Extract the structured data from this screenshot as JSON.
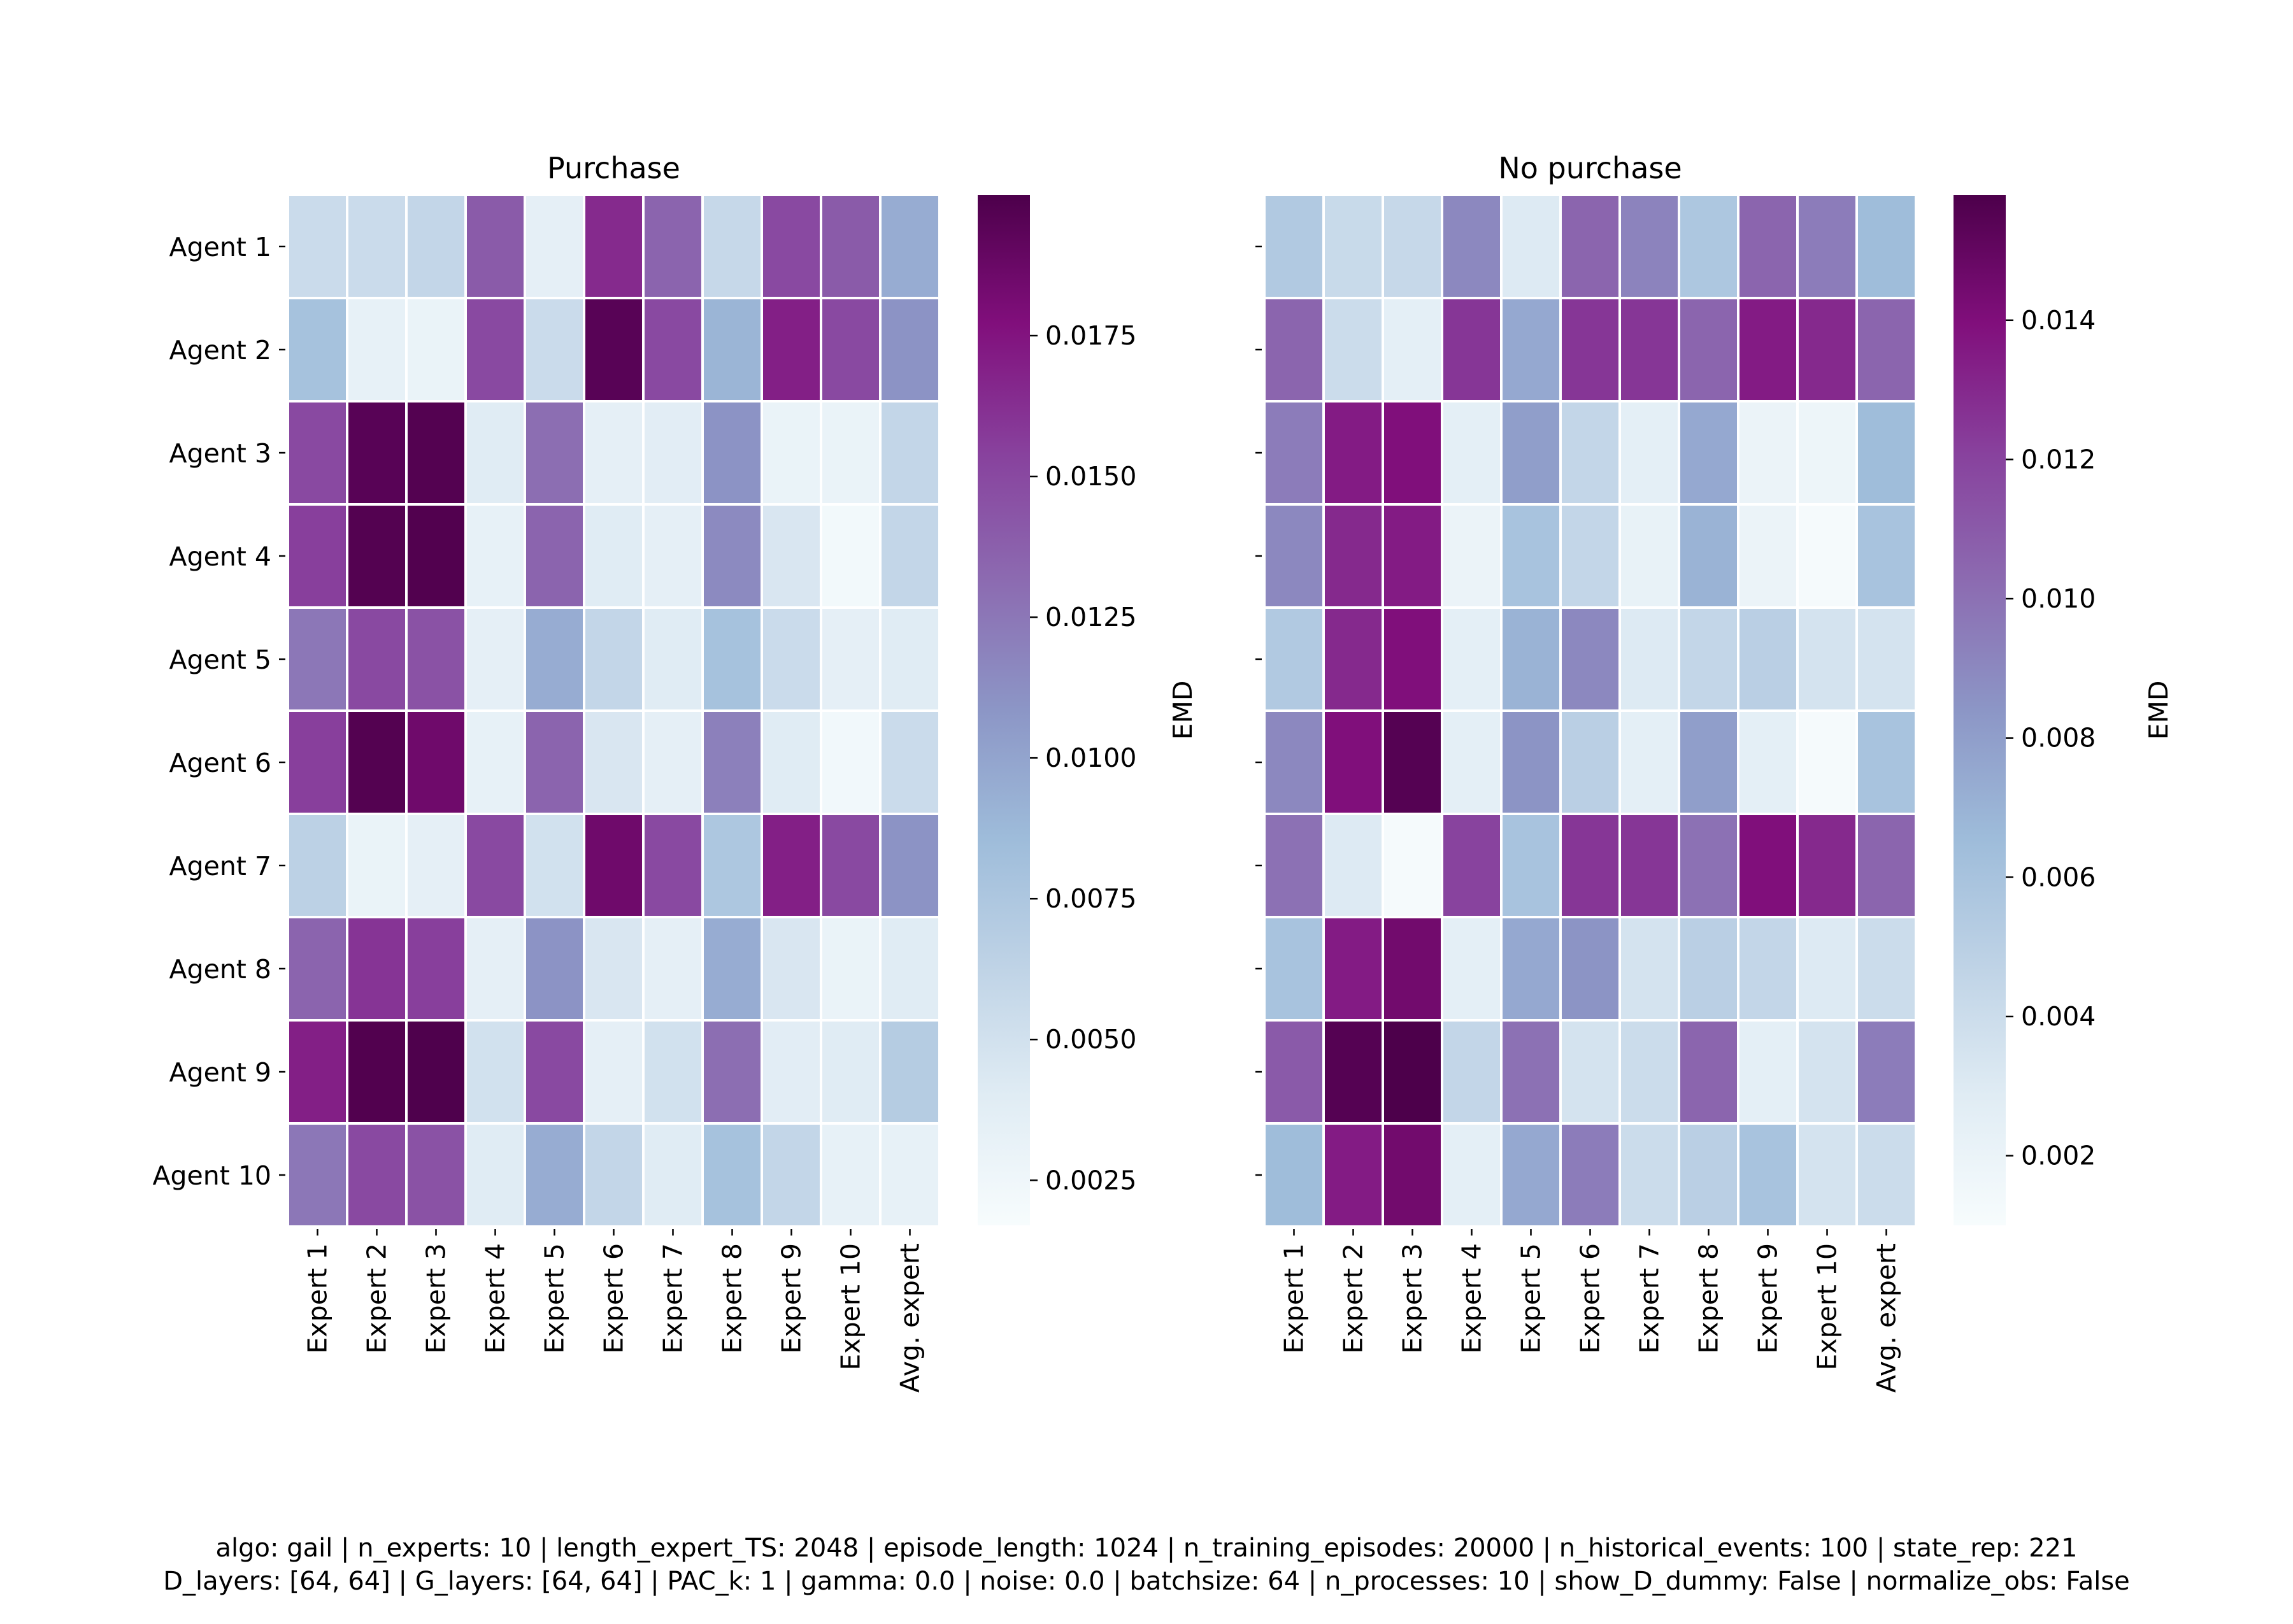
{
  "chart_data": [
    {
      "type": "heatmap",
      "title": "Purchase",
      "row_labels": [
        "Agent 1",
        "Agent 2",
        "Agent 3",
        "Agent 4",
        "Agent 5",
        "Agent 6",
        "Agent 7",
        "Agent 8",
        "Agent 9",
        "Agent 10"
      ],
      "col_labels": [
        "Expert 1",
        "Expert 2",
        "Expert 3",
        "Expert 4",
        "Expert 5",
        "Expert 6",
        "Expert 7",
        "Expert 8",
        "Expert 9",
        "Expert 10",
        "Avg. expert"
      ],
      "values": [
        [
          0.0055,
          0.0055,
          0.006,
          0.014,
          0.0035,
          0.0165,
          0.0135,
          0.0058,
          0.015,
          0.014,
          0.0095
        ],
        [
          0.008,
          0.0033,
          0.003,
          0.015,
          0.0055,
          0.0195,
          0.015,
          0.009,
          0.017,
          0.015,
          0.011
        ],
        [
          0.015,
          0.0195,
          0.0197,
          0.004,
          0.013,
          0.0035,
          0.0038,
          0.011,
          0.003,
          0.003,
          0.006
        ],
        [
          0.0155,
          0.0197,
          0.0198,
          0.0033,
          0.0135,
          0.004,
          0.0035,
          0.0115,
          0.0045,
          0.0022,
          0.006
        ],
        [
          0.0125,
          0.015,
          0.0145,
          0.0035,
          0.0095,
          0.006,
          0.004,
          0.008,
          0.0055,
          0.0035,
          0.004
        ],
        [
          0.0155,
          0.0197,
          0.0185,
          0.0033,
          0.0135,
          0.0045,
          0.0035,
          0.012,
          0.004,
          0.0023,
          0.0055
        ],
        [
          0.0065,
          0.003,
          0.0035,
          0.015,
          0.005,
          0.0185,
          0.015,
          0.0075,
          0.017,
          0.015,
          0.011
        ],
        [
          0.0135,
          0.016,
          0.0155,
          0.0035,
          0.011,
          0.0045,
          0.0035,
          0.0095,
          0.0045,
          0.003,
          0.004
        ],
        [
          0.017,
          0.0198,
          0.0199,
          0.005,
          0.015,
          0.0035,
          0.005,
          0.013,
          0.0038,
          0.004,
          0.007
        ],
        [
          0.0125,
          0.015,
          0.0145,
          0.004,
          0.0095,
          0.006,
          0.004,
          0.008,
          0.006,
          0.0033,
          0.0033
        ]
      ],
      "vmin": 0.0017,
      "vmax": 0.02,
      "colorbar": {
        "label": "EMD",
        "ticks": [
          0.0025,
          0.005,
          0.0075,
          0.01,
          0.0125,
          0.015,
          0.0175
        ],
        "tick_labels": [
          "0.0025",
          "0.0050",
          "0.0075",
          "0.0100",
          "0.0125",
          "0.0150",
          "0.0175"
        ]
      },
      "colormap": "BuPu"
    },
    {
      "type": "heatmap",
      "title": "No purchase",
      "row_labels": [
        "",
        "",
        "",
        "",
        "",
        "",
        "",
        "",
        "",
        ""
      ],
      "col_labels": [
        "Expert 1",
        "Expert 2",
        "Expert 3",
        "Expert 4",
        "Expert 5",
        "Expert 6",
        "Expert 7",
        "Expert 8",
        "Expert 9",
        "Expert 10",
        "Avg. expert"
      ],
      "values": [
        [
          0.0055,
          0.0042,
          0.0043,
          0.009,
          0.003,
          0.0105,
          0.0092,
          0.0057,
          0.0105,
          0.0095,
          0.0065
        ],
        [
          0.0105,
          0.004,
          0.0025,
          0.0125,
          0.0075,
          0.0125,
          0.0125,
          0.0105,
          0.0135,
          0.013,
          0.0105
        ],
        [
          0.0095,
          0.0135,
          0.014,
          0.0025,
          0.008,
          0.0045,
          0.0025,
          0.0075,
          0.002,
          0.0018,
          0.0065
        ],
        [
          0.009,
          0.013,
          0.0135,
          0.002,
          0.006,
          0.0045,
          0.0022,
          0.007,
          0.002,
          0.0012,
          0.006
        ],
        [
          0.0055,
          0.013,
          0.014,
          0.0025,
          0.007,
          0.009,
          0.003,
          0.0045,
          0.005,
          0.0035,
          0.0035
        ],
        [
          0.009,
          0.014,
          0.0155,
          0.0025,
          0.0085,
          0.005,
          0.0025,
          0.008,
          0.0025,
          0.0012,
          0.006
        ],
        [
          0.01,
          0.003,
          0.0012,
          0.012,
          0.006,
          0.0125,
          0.0125,
          0.01,
          0.014,
          0.013,
          0.0105
        ],
        [
          0.006,
          0.0135,
          0.0145,
          0.0025,
          0.0075,
          0.0085,
          0.0035,
          0.005,
          0.0045,
          0.003,
          0.004
        ],
        [
          0.011,
          0.0155,
          0.0158,
          0.0045,
          0.01,
          0.0035,
          0.004,
          0.0105,
          0.0025,
          0.0035,
          0.0095
        ],
        [
          0.0065,
          0.0135,
          0.0145,
          0.0025,
          0.0075,
          0.0095,
          0.004,
          0.005,
          0.006,
          0.0035,
          0.004
        ]
      ],
      "vmin": 0.001,
      "vmax": 0.0158,
      "colorbar": {
        "label": "EMD",
        "ticks": [
          0.002,
          0.004,
          0.006,
          0.008,
          0.01,
          0.012,
          0.014
        ],
        "tick_labels": [
          "0.002",
          "0.004",
          "0.006",
          "0.008",
          "0.010",
          "0.012",
          "0.014"
        ]
      },
      "colormap": "BuPu"
    }
  ],
  "caption": {
    "line1": "algo: gail | n_experts: 10 | length_expert_TS: 2048 | episode_length: 1024 | n_training_episodes: 20000 | n_historical_events: 100 | state_rep: 221",
    "line2": "D_layers: [64, 64] | G_layers: [64, 64] | PAC_k: 1 | gamma: 0.0 | noise: 0.0 | batchsize: 64 | n_processes: 10 | show_D_dummy: False | normalize_obs: False"
  }
}
